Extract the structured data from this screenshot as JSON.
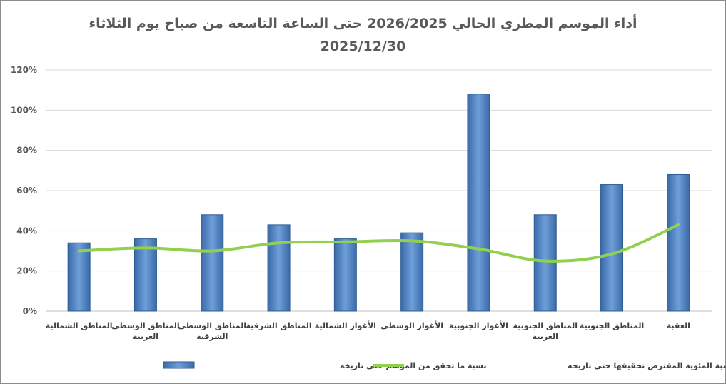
{
  "chart_data": {
    "type": "bar",
    "title_line1": "أداء الموسم المطري الحالي 2026/2025 حتى الساعة التاسعة من صباح يوم الثلاثاء",
    "title_line2": "2025/12/30",
    "categories": [
      [
        "المناطق الشمالية"
      ],
      [
        "المناطق الوسطى",
        "الغربية"
      ],
      [
        "المناطق الوسطى",
        "الشرقية"
      ],
      [
        "المناطق الشرقية"
      ],
      [
        "الأغوار الشمالية"
      ],
      [
        "الأغوار الوسطى"
      ],
      [
        "الأغوار الجنوبية"
      ],
      [
        "المناطق الجنوبية",
        "الغربية"
      ],
      [
        "المناطق الجنوبية"
      ],
      [
        "العقبة"
      ]
    ],
    "y_ticks": [
      "0%",
      "20%",
      "40%",
      "60%",
      "80%",
      "100%",
      "120%"
    ],
    "ylim": [
      0,
      120
    ],
    "grid": true,
    "legend_position": "bottom",
    "series": [
      {
        "name": "نسبة ما تحقق من الموسم حتى تاريخه",
        "type": "bar",
        "color": "#4a7ebb",
        "values": [
          34,
          36,
          48,
          43,
          36,
          39,
          108,
          48,
          63,
          68
        ]
      },
      {
        "name": "النسبة المئوية المفترض تحقيقها  حتى تاريخه",
        "type": "line",
        "color": "#92d050",
        "values": [
          30,
          31.5,
          30,
          34,
          34.5,
          35,
          31,
          25,
          28.5,
          43
        ]
      }
    ]
  }
}
